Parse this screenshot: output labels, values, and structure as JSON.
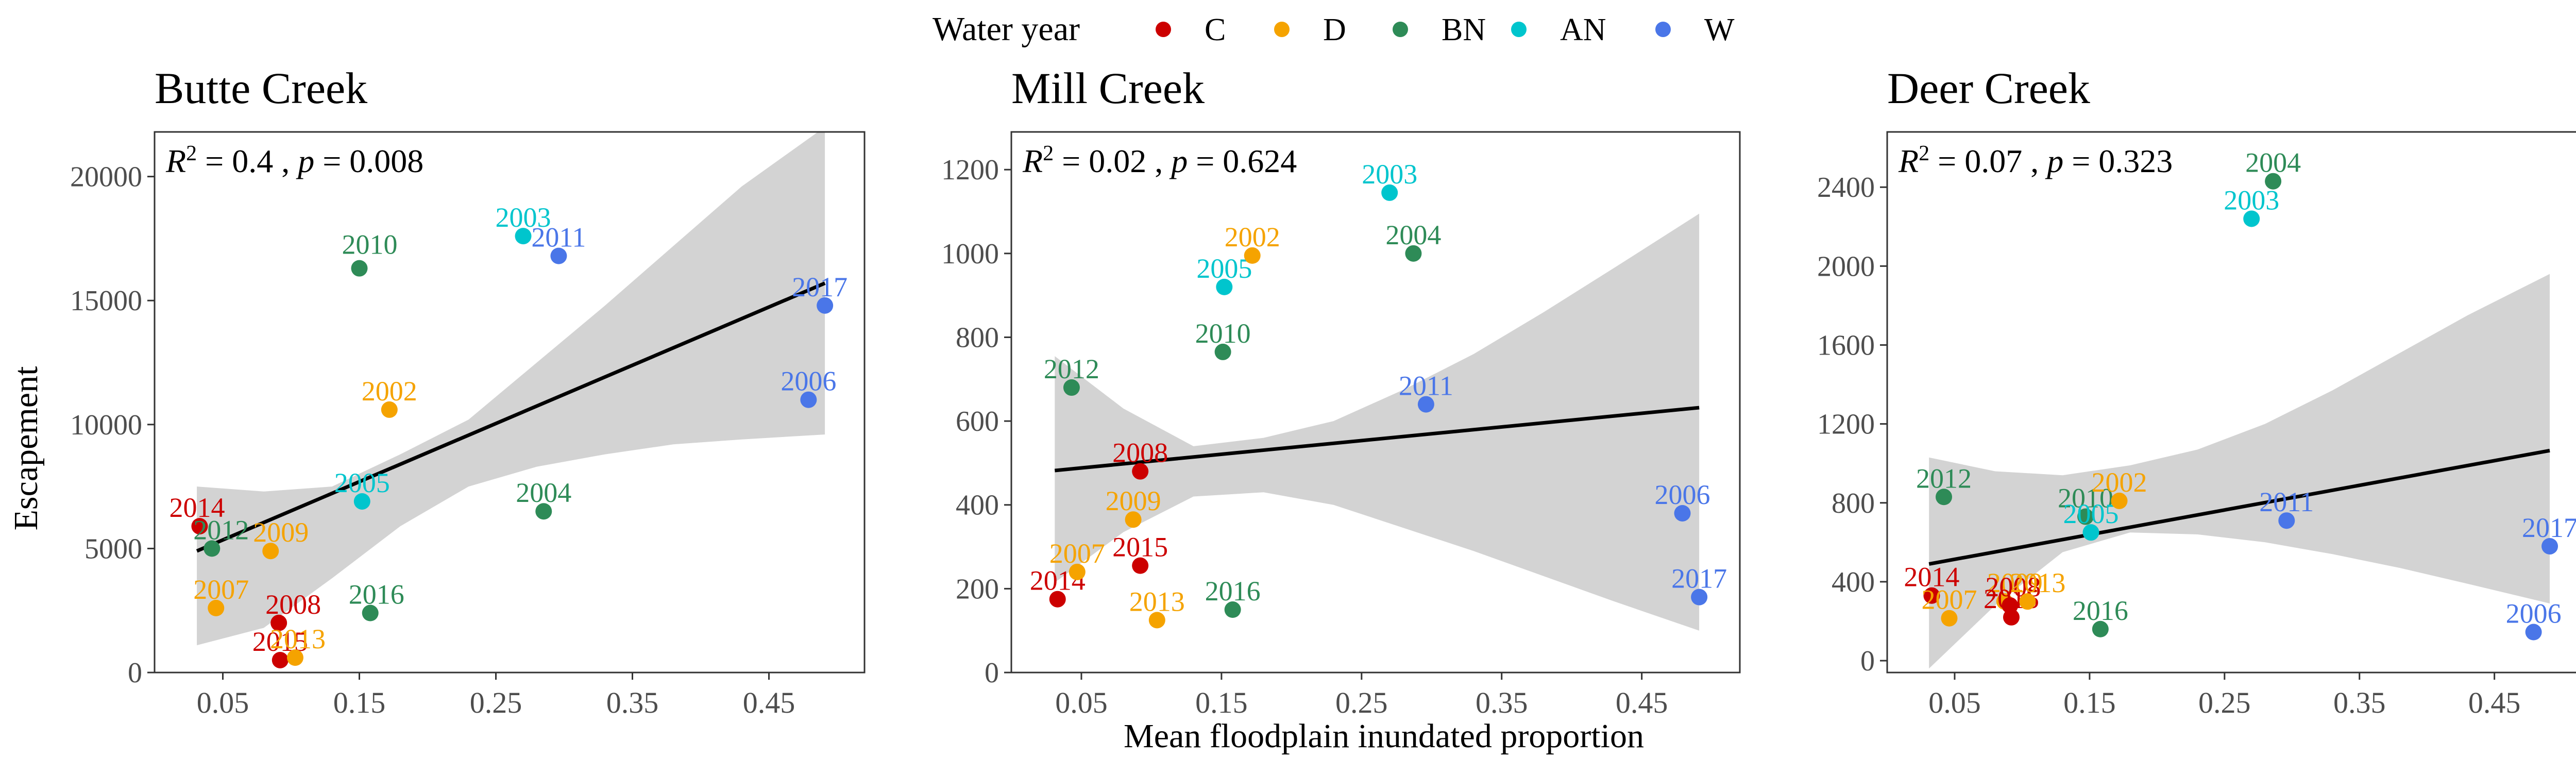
{
  "legend": {
    "title": "Water year",
    "entries": [
      {
        "key": "C",
        "label": "C",
        "color": "#cc0000"
      },
      {
        "key": "D",
        "label": "D",
        "color": "#f5a300"
      },
      {
        "key": "BN",
        "label": "BN",
        "color": "#2e8b57"
      },
      {
        "key": "AN",
        "label": "AN",
        "color": "#00c5cd"
      },
      {
        "key": "W",
        "label": "W",
        "color": "#4a76e8"
      }
    ]
  },
  "shared": {
    "ylabel": "Escapement",
    "xlabel": "Mean floodplain inundated proportion"
  },
  "chart_data": [
    {
      "type": "scatter",
      "title": "Butte Creek",
      "stats": {
        "r2_value": "0.4",
        "p_value": "0.008"
      },
      "xlim": [
        0.0,
        0.52
      ],
      "ylim": [
        0,
        21800
      ],
      "xticks": [
        0.05,
        0.15,
        0.25,
        0.35,
        0.45
      ],
      "xtick_labels": [
        "0.05",
        "0.15",
        "0.25",
        "0.35",
        "0.45"
      ],
      "yticks": [
        0,
        5000,
        10000,
        15000,
        20000
      ],
      "ytick_labels": [
        "0",
        "5000",
        "10000",
        "15000",
        "20000"
      ],
      "fit": {
        "x": [
          0.031,
          0.491
        ],
        "y": [
          4900,
          15700
        ]
      },
      "band": {
        "x": [
          0.031,
          0.08,
          0.13,
          0.18,
          0.23,
          0.28,
          0.33,
          0.38,
          0.43,
          0.491
        ],
        "lower": [
          1100,
          1800,
          3800,
          5900,
          7500,
          8300,
          8800,
          9200,
          9400,
          9600
        ],
        "upper": [
          7500,
          7300,
          7500,
          8800,
          10200,
          12500,
          14800,
          17200,
          19600,
          22000
        ]
      },
      "points": [
        {
          "year": "2014",
          "wy": "C",
          "x": 0.033,
          "y": 5900
        },
        {
          "year": "2012",
          "wy": "BN",
          "x": 0.042,
          "y": 5000
        },
        {
          "year": "2007",
          "wy": "D",
          "x": 0.045,
          "y": 2600
        },
        {
          "year": "2009",
          "wy": "D",
          "x": 0.085,
          "y": 4900
        },
        {
          "year": "2008",
          "wy": "C",
          "x": 0.091,
          "y": 2000
        },
        {
          "year": "2015",
          "wy": "C",
          "x": 0.092,
          "y": 500
        },
        {
          "year": "2013",
          "wy": "D",
          "x": 0.103,
          "y": 600
        },
        {
          "year": "2010",
          "wy": "BN",
          "x": 0.15,
          "y": 16300
        },
        {
          "year": "2005",
          "wy": "AN",
          "x": 0.152,
          "y": 6900
        },
        {
          "year": "2016",
          "wy": "BN",
          "x": 0.158,
          "y": 2400
        },
        {
          "year": "2002",
          "wy": "D",
          "x": 0.172,
          "y": 10600
        },
        {
          "year": "2003",
          "wy": "AN",
          "x": 0.27,
          "y": 17600
        },
        {
          "year": "2004",
          "wy": "BN",
          "x": 0.285,
          "y": 6500
        },
        {
          "year": "2011",
          "wy": "W",
          "x": 0.296,
          "y": 16800
        },
        {
          "year": "2006",
          "wy": "W",
          "x": 0.479,
          "y": 11000
        },
        {
          "year": "2017",
          "wy": "W",
          "x": 0.491,
          "y": 14800
        }
      ]
    },
    {
      "type": "scatter",
      "title": "Mill Creek",
      "stats": {
        "r2_value": "0.02",
        "p_value": "0.624"
      },
      "xlim": [
        0.0,
        0.52
      ],
      "ylim": [
        0,
        1290
      ],
      "xticks": [
        0.05,
        0.15,
        0.25,
        0.35,
        0.45
      ],
      "xtick_labels": [
        "0.05",
        "0.15",
        "0.25",
        "0.35",
        "0.45"
      ],
      "yticks": [
        0,
        200,
        400,
        600,
        800,
        1000,
        1200
      ],
      "ytick_labels": [
        "0",
        "200",
        "400",
        "600",
        "800",
        "1000",
        "1200"
      ],
      "fit": {
        "x": [
          0.031,
          0.491
        ],
        "y": [
          482,
          632
        ]
      },
      "band": {
        "x": [
          0.031,
          0.08,
          0.13,
          0.18,
          0.23,
          0.28,
          0.33,
          0.38,
          0.43,
          0.491
        ],
        "lower": [
          215,
          335,
          420,
          430,
          400,
          345,
          290,
          230,
          170,
          100
        ],
        "upper": [
          755,
          630,
          540,
          560,
          600,
          675,
          760,
          860,
          965,
          1095
        ]
      },
      "points": [
        {
          "year": "2014",
          "wy": "C",
          "x": 0.033,
          "y": 175
        },
        {
          "year": "2012",
          "wy": "BN",
          "x": 0.043,
          "y": 680
        },
        {
          "year": "2007",
          "wy": "D",
          "x": 0.047,
          "y": 240
        },
        {
          "year": "2009",
          "wy": "D",
          "x": 0.087,
          "y": 365
        },
        {
          "year": "2008",
          "wy": "C",
          "x": 0.092,
          "y": 480
        },
        {
          "year": "2015",
          "wy": "C",
          "x": 0.092,
          "y": 255
        },
        {
          "year": "2013",
          "wy": "D",
          "x": 0.104,
          "y": 125
        },
        {
          "year": "2010",
          "wy": "BN",
          "x": 0.151,
          "y": 765
        },
        {
          "year": "2005",
          "wy": "AN",
          "x": 0.152,
          "y": 920
        },
        {
          "year": "2016",
          "wy": "BN",
          "x": 0.158,
          "y": 150
        },
        {
          "year": "2002",
          "wy": "D",
          "x": 0.172,
          "y": 995
        },
        {
          "year": "2003",
          "wy": "AN",
          "x": 0.27,
          "y": 1145
        },
        {
          "year": "2004",
          "wy": "BN",
          "x": 0.287,
          "y": 1000
        },
        {
          "year": "2011",
          "wy": "W",
          "x": 0.296,
          "y": 640
        },
        {
          "year": "2006",
          "wy": "W",
          "x": 0.479,
          "y": 380
        },
        {
          "year": "2017",
          "wy": "W",
          "x": 0.491,
          "y": 180
        }
      ]
    },
    {
      "type": "scatter",
      "title": "Deer Creek",
      "stats": {
        "r2_value": "0.07",
        "p_value": "0.323"
      },
      "xlim": [
        0.0,
        0.52
      ],
      "ylim": [
        -60,
        2680
      ],
      "xticks": [
        0.05,
        0.15,
        0.25,
        0.35,
        0.45
      ],
      "xtick_labels": [
        "0.05",
        "0.15",
        "0.25",
        "0.35",
        "0.45"
      ],
      "yticks": [
        0,
        400,
        800,
        1200,
        1600,
        2000,
        2400
      ],
      "ytick_labels": [
        "0",
        "400",
        "800",
        "1200",
        "1600",
        "2000",
        "2400"
      ],
      "fit": {
        "x": [
          0.031,
          0.491
        ],
        "y": [
          490,
          1065
        ]
      },
      "band": {
        "x": [
          0.031,
          0.08,
          0.13,
          0.18,
          0.23,
          0.28,
          0.33,
          0.38,
          0.43,
          0.491
        ],
        "lower": [
          -40,
          280,
          550,
          650,
          640,
          600,
          540,
          470,
          390,
          290
        ],
        "upper": [
          1030,
          960,
          940,
          990,
          1070,
          1200,
          1370,
          1560,
          1750,
          1960
        ]
      },
      "points": [
        {
          "year": "2014",
          "wy": "C",
          "x": 0.033,
          "y": 330
        },
        {
          "year": "2012",
          "wy": "BN",
          "x": 0.042,
          "y": 830
        },
        {
          "year": "2007",
          "wy": "D",
          "x": 0.046,
          "y": 215
        },
        {
          "year": "2009",
          "wy": "D",
          "x": 0.087,
          "y": 300
        },
        {
          "year": "2008",
          "wy": "C",
          "x": 0.091,
          "y": 280
        },
        {
          "year": "2015",
          "wy": "C",
          "x": 0.092,
          "y": 220
        },
        {
          "year": "2013",
          "wy": "D",
          "x": 0.104,
          "y": 300
        },
        {
          "year": "2010",
          "wy": "BN",
          "x": 0.147,
          "y": 730
        },
        {
          "year": "2005",
          "wy": "AN",
          "x": 0.151,
          "y": 650
        },
        {
          "year": "2016",
          "wy": "BN",
          "x": 0.158,
          "y": 160
        },
        {
          "year": "2002",
          "wy": "D",
          "x": 0.172,
          "y": 810
        },
        {
          "year": "2003",
          "wy": "AN",
          "x": 0.27,
          "y": 2240
        },
        {
          "year": "2004",
          "wy": "BN",
          "x": 0.286,
          "y": 2430
        },
        {
          "year": "2011",
          "wy": "W",
          "x": 0.296,
          "y": 710
        },
        {
          "year": "2006",
          "wy": "W",
          "x": 0.479,
          "y": 145
        },
        {
          "year": "2017",
          "wy": "W",
          "x": 0.491,
          "y": 580
        }
      ]
    }
  ]
}
